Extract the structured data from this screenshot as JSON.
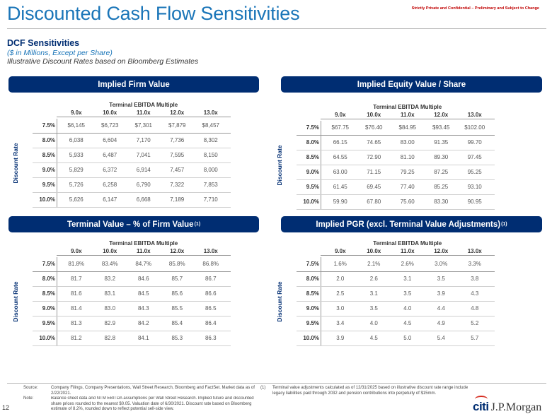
{
  "header": {
    "title": "Discounted Cash Flow Sensitivities",
    "confidential": "Strictly Private and Confidential – Preliminary and Subject to Change"
  },
  "subtitle": {
    "line1": "DCF Sensitivities",
    "line2": "($ in Millions, Except per Share)",
    "line3": "Illustrative Discount Rates based on Bloomberg Estimates"
  },
  "panels": [
    {
      "band_title": "Implied Firm Value",
      "band_sup": "",
      "multiple_header": "Terminal EBITDA Multiple",
      "discount_label": "Discount Rate",
      "columns": [
        "9.0x",
        "10.0x",
        "11.0x",
        "12.0x",
        "13.0x"
      ],
      "rows": [
        {
          "rate": "7.5%",
          "values": [
            "$6,145",
            "$6,723",
            "$7,301",
            "$7,879",
            "$8,457"
          ]
        },
        {
          "rate": "8.0%",
          "values": [
            "6,038",
            "6,604",
            "7,170",
            "7,736",
            "8,302"
          ]
        },
        {
          "rate": "8.5%",
          "values": [
            "5,933",
            "6,487",
            "7,041",
            "7,595",
            "8,150"
          ]
        },
        {
          "rate": "9.0%",
          "values": [
            "5,829",
            "6,372",
            "6,914",
            "7,457",
            "8,000"
          ]
        },
        {
          "rate": "9.5%",
          "values": [
            "5,726",
            "6,258",
            "6,790",
            "7,322",
            "7,853"
          ]
        },
        {
          "rate": "10.0%",
          "values": [
            "5,626",
            "6,147",
            "6,668",
            "7,189",
            "7,710"
          ]
        }
      ]
    },
    {
      "band_title": "Implied Equity Value / Share",
      "band_sup": "",
      "multiple_header": "Terminal EBITDA Multiple",
      "discount_label": "Discount Rate",
      "columns": [
        "9.0x",
        "10.0x",
        "11.0x",
        "12.0x",
        "13.0x"
      ],
      "rows": [
        {
          "rate": "7.5%",
          "values": [
            "$67.75",
            "$76.40",
            "$84.95",
            "$93.45",
            "$102.00"
          ]
        },
        {
          "rate": "8.0%",
          "values": [
            "66.15",
            "74.65",
            "83.00",
            "91.35",
            "99.70"
          ]
        },
        {
          "rate": "8.5%",
          "values": [
            "64.55",
            "72.90",
            "81.10",
            "89.30",
            "97.45"
          ]
        },
        {
          "rate": "9.0%",
          "values": [
            "63.00",
            "71.15",
            "79.25",
            "87.25",
            "95.25"
          ]
        },
        {
          "rate": "9.5%",
          "values": [
            "61.45",
            "69.45",
            "77.40",
            "85.25",
            "93.10"
          ]
        },
        {
          "rate": "10.0%",
          "values": [
            "59.90",
            "67.80",
            "75.60",
            "83.30",
            "90.95"
          ]
        }
      ]
    },
    {
      "band_title": "Terminal Value – % of Firm Value",
      "band_sup": "(1)",
      "multiple_header": "Terminal EBITDA Multiple",
      "discount_label": "Discount Rate",
      "columns": [
        "9.0x",
        "10.0x",
        "11.0x",
        "12.0x",
        "13.0x"
      ],
      "rows": [
        {
          "rate": "7.5%",
          "values": [
            "81.8%",
            "83.4%",
            "84.7%",
            "85.8%",
            "86.8%"
          ]
        },
        {
          "rate": "8.0%",
          "values": [
            "81.7",
            "83.2",
            "84.6",
            "85.7",
            "86.7"
          ]
        },
        {
          "rate": "8.5%",
          "values": [
            "81.6",
            "83.1",
            "84.5",
            "85.6",
            "86.6"
          ]
        },
        {
          "rate": "9.0%",
          "values": [
            "81.4",
            "83.0",
            "84.3",
            "85.5",
            "86.5"
          ]
        },
        {
          "rate": "9.5%",
          "values": [
            "81.3",
            "82.9",
            "84.2",
            "85.4",
            "86.4"
          ]
        },
        {
          "rate": "10.0%",
          "values": [
            "81.2",
            "82.8",
            "84.1",
            "85.3",
            "86.3"
          ]
        }
      ]
    },
    {
      "band_title": "Implied PGR (excl. Terminal Value Adjustments)",
      "band_sup": "(1)",
      "multiple_header": "Terminal EBITDA Multiple",
      "discount_label": "Discount Rate",
      "columns": [
        "9.0x",
        "10.0x",
        "11.0x",
        "12.0x",
        "13.0x"
      ],
      "rows": [
        {
          "rate": "7.5%",
          "values": [
            "1.6%",
            "2.1%",
            "2.6%",
            "3.0%",
            "3.3%"
          ]
        },
        {
          "rate": "8.0%",
          "values": [
            "2.0",
            "2.6",
            "3.1",
            "3.5",
            "3.8"
          ]
        },
        {
          "rate": "8.5%",
          "values": [
            "2.5",
            "3.1",
            "3.5",
            "3.9",
            "4.3"
          ]
        },
        {
          "rate": "9.0%",
          "values": [
            "3.0",
            "3.5",
            "4.0",
            "4.4",
            "4.8"
          ]
        },
        {
          "rate": "9.5%",
          "values": [
            "3.4",
            "4.0",
            "4.5",
            "4.9",
            "5.2"
          ]
        },
        {
          "rate": "10.0%",
          "values": [
            "3.9",
            "4.5",
            "5.0",
            "5.4",
            "5.7"
          ]
        }
      ]
    }
  ],
  "footnotes": {
    "source_label": "Source:",
    "source_text": "Company Filings, Company Presentations, Wall Street Research, Bloomberg and FactSet. Market data as of 2/22/2021.",
    "note_label": "Note:",
    "note_text": "Balance sheet data and NTM EBITDA assumptions per Wall Street Research. Implied future and discounted share prices rounded to the nearest $0.05. Valuation date of 6/30/2021. Discount rate based on Bloomberg estimate of 8.2%, rounded down to reflect potential sell-side view.",
    "fn1_label": "(1)",
    "fn1_text": "Terminal value adjustments calculated as of 12/31/2025 based on illustrative discount rate range include legacy liabilities paid through 2032 and pension contributions into perpetuity of $15mm."
  },
  "page_number": "12",
  "logo": {
    "citi": "citi",
    "jpm": "J.P.Morgan"
  }
}
